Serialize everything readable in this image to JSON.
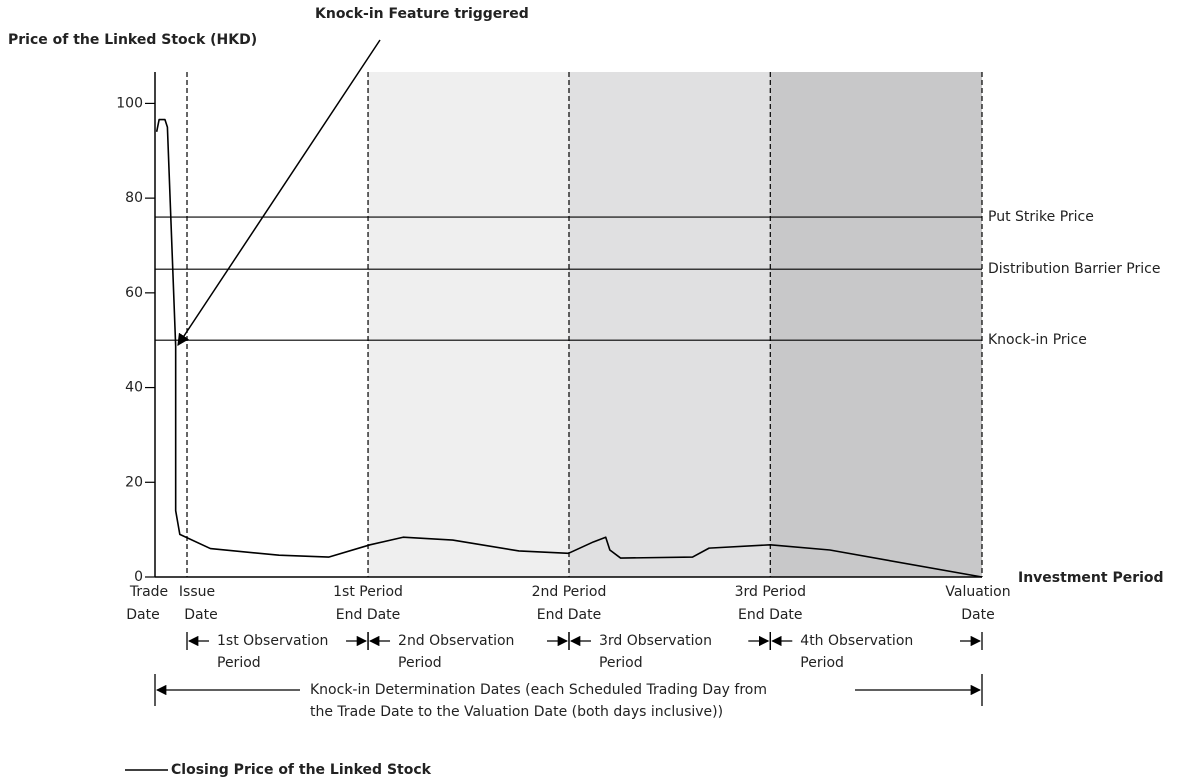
{
  "chart_data": {
    "type": "line",
    "annotation": "Knock-in Feature triggered",
    "y_label": "Price of the Linked Stock (HKD)",
    "x_label": "Investment Period",
    "xlim": [
      0,
      100
    ],
    "ylim": [
      0,
      106
    ],
    "yticks": [
      0,
      20,
      40,
      60,
      80,
      100
    ],
    "series": [
      {
        "name": "Closing Price of the Linked Stock",
        "color": "#000000",
        "x": [
          0.2,
          0.5,
          1.2,
          1.5,
          2.5,
          2.5,
          3.0,
          6.7,
          15,
          21,
          26,
          30,
          36,
          44,
          50,
          53,
          54.5,
          55,
          56.3,
          65,
          67,
          74.4,
          81.6,
          100
        ],
        "values": [
          94,
          96.6,
          96.6,
          95,
          48.7,
          14,
          9,
          6,
          4.6,
          4.2,
          6.8,
          8.4,
          7.8,
          5.5,
          5,
          7.4,
          8.4,
          5.7,
          4,
          4.2,
          6.1,
          6.8,
          5.7,
          0
        ]
      }
    ],
    "levels": [
      {
        "name": "Put Strike Price",
        "value": 76
      },
      {
        "name": "Distribution Barrier Price",
        "value": 65
      },
      {
        "name": "Knock-in Price",
        "value": 50
      }
    ],
    "regions": [
      {
        "from": 25.76,
        "to": 50.06,
        "color": "#efefef"
      },
      {
        "from": 50.06,
        "to": 74.4,
        "color": "#e0e0e1"
      },
      {
        "from": 74.4,
        "to": 100,
        "color": "#c8c8c9"
      }
    ],
    "dates": [
      {
        "x": 0,
        "label": [
          "Trade",
          "Date"
        ]
      },
      {
        "x": 3.87,
        "label": [
          "Issue",
          "Date"
        ]
      },
      {
        "x": 25.76,
        "label": [
          "1st Period",
          "End Date"
        ]
      },
      {
        "x": 50.06,
        "label": [
          "2nd Period",
          "End Date"
        ]
      },
      {
        "x": 74.4,
        "label": [
          "3rd Period",
          "End Date"
        ]
      },
      {
        "x": 100,
        "label": [
          "Valuation",
          "Date"
        ]
      }
    ],
    "periods": [
      {
        "from": 3.87,
        "to": 25.76,
        "label": [
          "1st Observation",
          "Period"
        ]
      },
      {
        "from": 25.76,
        "to": 50.06,
        "label": [
          "2nd Observation",
          "Period"
        ]
      },
      {
        "from": 50.06,
        "to": 74.4,
        "label": [
          "3rd Observation",
          "Period"
        ]
      },
      {
        "from": 74.4,
        "to": 100,
        "label": [
          "4th Observation",
          "Period"
        ]
      }
    ],
    "determination": [
      "Knock-in Determination Dates (each Scheduled Trading Day from",
      "the Trade Date to the Valuation Date (both days inclusive))"
    ]
  }
}
